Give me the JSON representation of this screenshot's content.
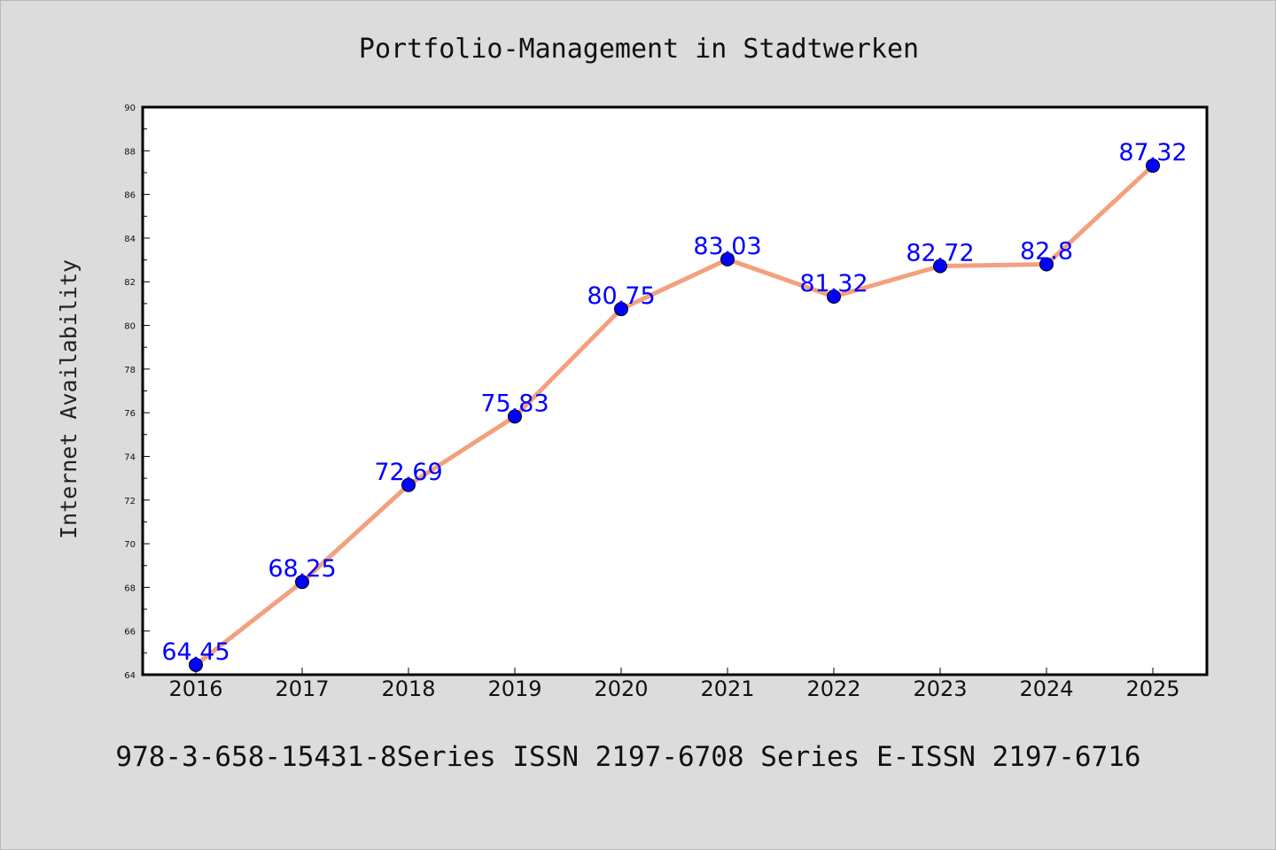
{
  "chart_data": {
    "type": "line",
    "title": "Portfolio-Management in Stadtwerken",
    "xlabel": "",
    "ylabel": "Internet Availability",
    "categories": [
      "2016",
      "2017",
      "2018",
      "2019",
      "2020",
      "2021",
      "2022",
      "2023",
      "2024",
      "2025"
    ],
    "series": [
      {
        "values": [
          64.45,
          68.25,
          72.69,
          75.83,
          80.75,
          83.03,
          81.32,
          82.72,
          82.8,
          87.32
        ],
        "labels": [
          "64.45",
          "68.25",
          "72.69",
          "75.83",
          "80.75",
          "83.03",
          "81.32",
          "82.72",
          "82.8",
          "87.32"
        ]
      }
    ],
    "ylim": [
      64,
      90
    ],
    "yticks": [
      "64",
      "66",
      "68",
      "70",
      "72",
      "74",
      "76",
      "78",
      "80",
      "82",
      "84",
      "86",
      "88",
      "90"
    ],
    "grid": false,
    "legend": "none",
    "line_color": "#f4a07e",
    "marker_color": "#0000ff",
    "label_color": "#0000ff",
    "footer": "978-3-658-15431-8Series ISSN 2197-6708 Series E-ISSN 2197-6716"
  }
}
